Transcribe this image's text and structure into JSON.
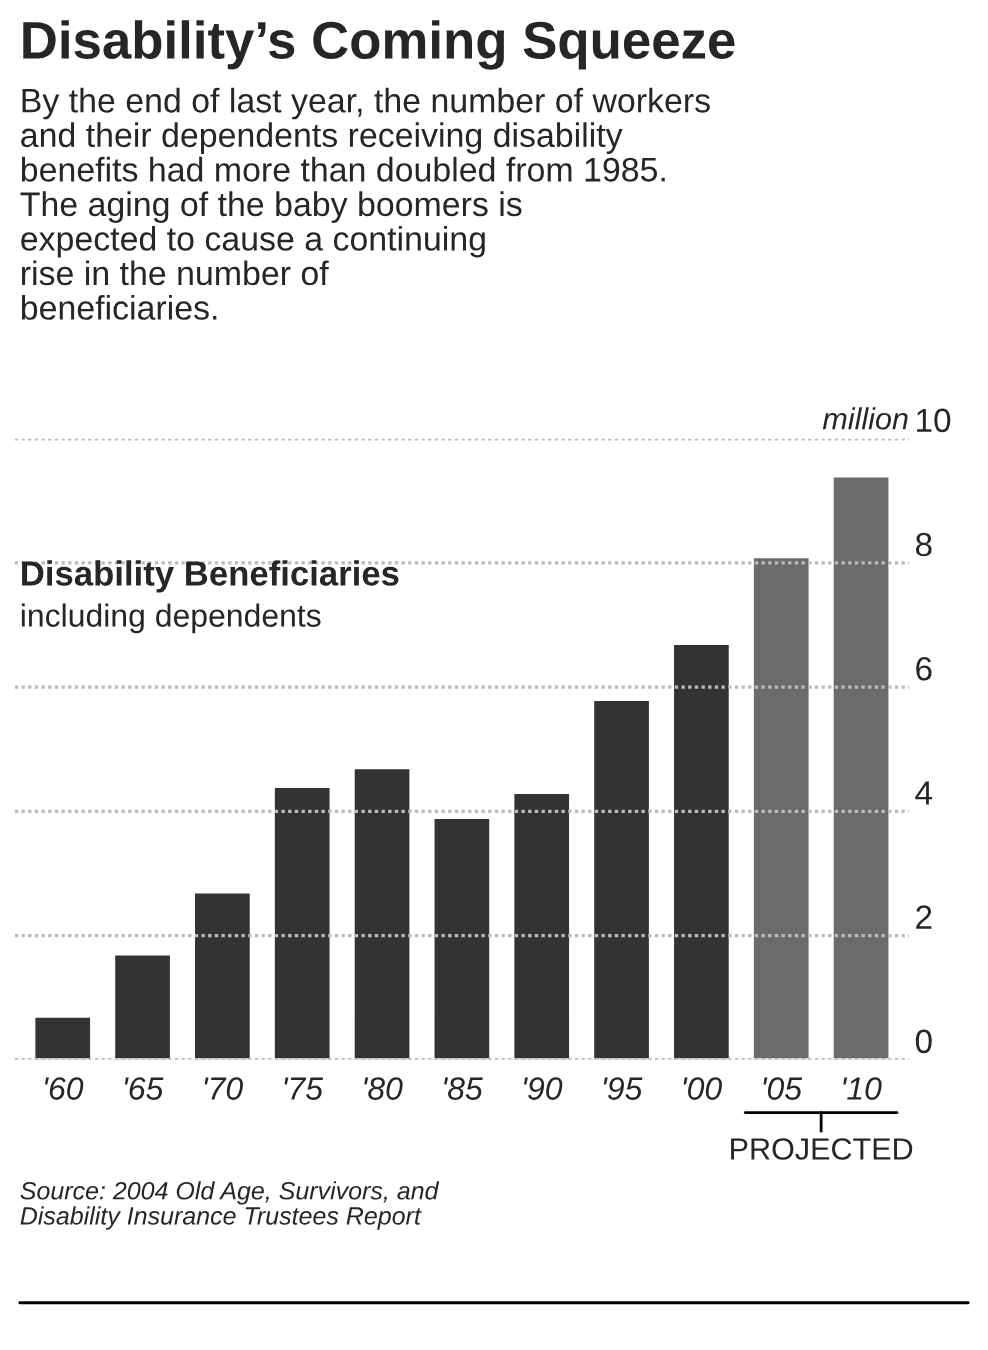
{
  "chart_data": {
    "type": "bar",
    "title": "Disability’s Coming Squeeze",
    "subtitle": "By the end of last year, the number of workers\nand their dependents receiving disability\nbenefits had more than doubled from 1985.\nThe aging of the baby boomers is\nexpected to cause a continuing\nrise in the number of\nbeneficiaries.",
    "ylabel": "million",
    "categories": [
      "'60",
      "'65",
      "'70",
      "'75",
      "'80",
      "'85",
      "'90",
      "'95",
      "'00",
      "'05",
      "'10"
    ],
    "values": [
      0.7,
      1.7,
      2.7,
      4.4,
      4.7,
      3.9,
      4.3,
      5.8,
      6.7,
      8.1,
      9.4
    ],
    "colors": [
      "#333333",
      "#333333",
      "#333333",
      "#333333",
      "#333333",
      "#333333",
      "#333333",
      "#333333",
      "#333333",
      "#6b6b6b",
      "#6b6b6b"
    ],
    "ylim": [
      0,
      10
    ],
    "yticks": [
      0,
      2,
      4,
      6,
      8,
      10
    ],
    "grid": "y",
    "annotations": [
      "Disability Beneficiaries",
      "including dependents",
      "PROJECTED",
      "Source: 2004 Old Age, Survivors, and\nDisability Insurance Trustees Report"
    ]
  }
}
